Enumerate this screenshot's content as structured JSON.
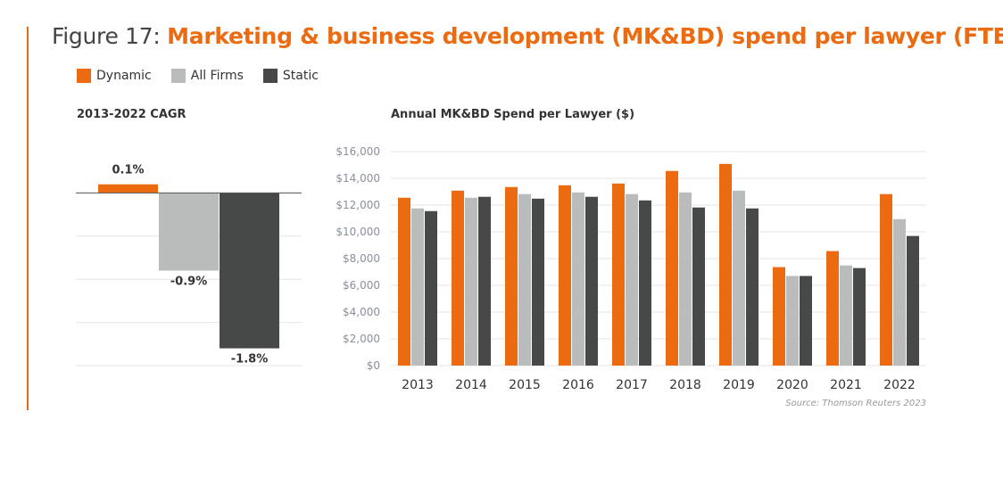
{
  "figure": {
    "label": "Figure 17: ",
    "title": "Marketing & business development (MK&BD) spend per lawyer (FTE)",
    "source": "Source: Thomson Reuters 2023"
  },
  "legend": [
    {
      "name": "Dynamic",
      "color": "#ec6a10"
    },
    {
      "name": "All Firms",
      "color": "#babbbb"
    },
    {
      "name": "Static",
      "color": "#474848"
    }
  ],
  "chart_data": [
    {
      "type": "bar",
      "title": "2013-2022 CAGR",
      "categories": [
        "Dynamic",
        "All Firms",
        "Static"
      ],
      "values": [
        0.1,
        -0.9,
        -1.8
      ],
      "data_labels": [
        "0.1%",
        "-0.9%",
        "-1.8%"
      ],
      "ylim": [
        -2.0,
        0.5
      ],
      "grid": true
    },
    {
      "type": "bar",
      "title": "Annual MK&BD Spend per Lawyer ($)",
      "categories": [
        "2013",
        "2014",
        "2015",
        "2016",
        "2017",
        "2018",
        "2019",
        "2020",
        "2021",
        "2022"
      ],
      "series": [
        {
          "name": "Dynamic",
          "values": [
            12550,
            13080,
            13350,
            13480,
            13610,
            14550,
            15080,
            7360,
            8560,
            12820
          ]
        },
        {
          "name": "All Firms",
          "values": [
            11750,
            12550,
            12820,
            12950,
            12820,
            12950,
            13080,
            6700,
            7490,
            10950
          ]
        },
        {
          "name": "Static",
          "values": [
            11550,
            12620,
            12480,
            12620,
            12350,
            11820,
            11750,
            6700,
            7290,
            9690
          ]
        }
      ],
      "ylim": [
        0,
        16000
      ],
      "yticks": [
        "$0",
        "$2,000",
        "$4,000",
        "$6,000",
        "$8,000",
        "$10,000",
        "$12,000",
        "$14,000",
        "$16,000"
      ],
      "grid": true
    }
  ]
}
